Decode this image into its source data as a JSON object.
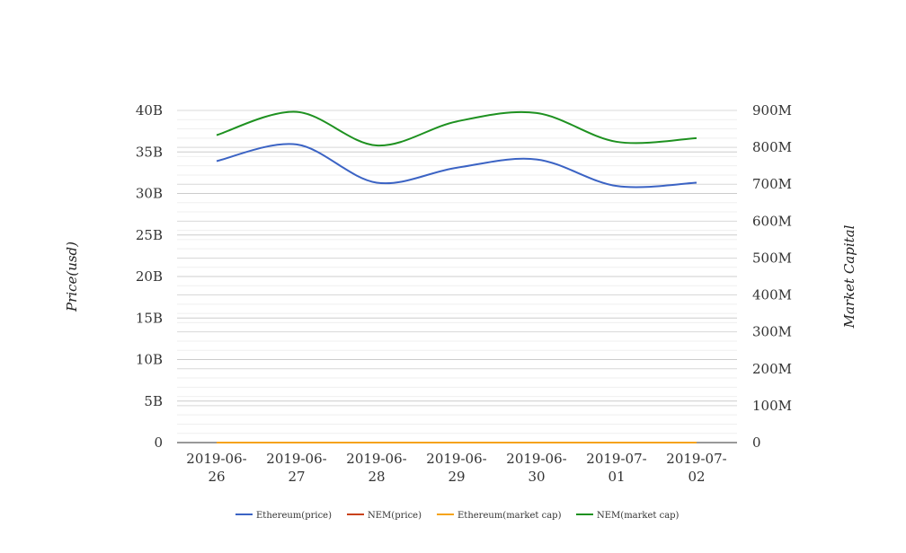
{
  "chart_data": {
    "type": "line",
    "categories": [
      "2019-06-26",
      "2019-06-27",
      "2019-06-28",
      "2019-06-29",
      "2019-06-30",
      "2019-07-01",
      "2019-07-02"
    ],
    "category_lines": [
      [
        "2019-06-",
        "26"
      ],
      [
        "2019-06-",
        "27"
      ],
      [
        "2019-06-",
        "28"
      ],
      [
        "2019-06-",
        "29"
      ],
      [
        "2019-06-",
        "30"
      ],
      [
        "2019-07-",
        "01"
      ],
      [
        "2019-07-",
        "02"
      ]
    ],
    "y_left": {
      "label": "Price(usd)",
      "range": [
        0,
        40000000000
      ],
      "ticks": [
        0,
        5000000000,
        10000000000,
        15000000000,
        20000000000,
        25000000000,
        30000000000,
        35000000000,
        40000000000
      ],
      "tick_labels": [
        "0",
        "5B",
        "10B",
        "15B",
        "20B",
        "25B",
        "30B",
        "35B",
        "40B"
      ]
    },
    "y_right": {
      "label": "Market Capital",
      "range": [
        0,
        900000000
      ],
      "ticks": [
        0,
        100000000,
        200000000,
        300000000,
        400000000,
        500000000,
        600000000,
        700000000,
        800000000,
        900000000
      ],
      "tick_labels": [
        "0",
        "100M",
        "200M",
        "300M",
        "400M",
        "500M",
        "600M",
        "700M",
        "800M",
        "900M"
      ]
    },
    "series": [
      {
        "name": "Ethereum(price)",
        "color": "#3b63c4",
        "axis": "left",
        "values": [
          33900000000,
          35900000000,
          31300000000,
          33100000000,
          34100000000,
          30900000000,
          31300000000
        ]
      },
      {
        "name": "NEM(price)",
        "color": "#c9411b",
        "axis": "left",
        "values": [
          0.08,
          0.08,
          0.08,
          0.08,
          0.08,
          0.08,
          0.08
        ]
      },
      {
        "name": "Ethereum(market cap)",
        "color": "#f5a31a",
        "axis": "right",
        "values": [
          300,
          310,
          290,
          300,
          310,
          290,
          300
        ]
      },
      {
        "name": "NEM(market cap)",
        "color": "#1e9120",
        "axis": "right",
        "values": [
          833000000,
          896000000,
          805000000,
          870000000,
          893000000,
          815000000,
          825000000
        ]
      }
    ],
    "grid": true,
    "legend_position": "bottom"
  }
}
